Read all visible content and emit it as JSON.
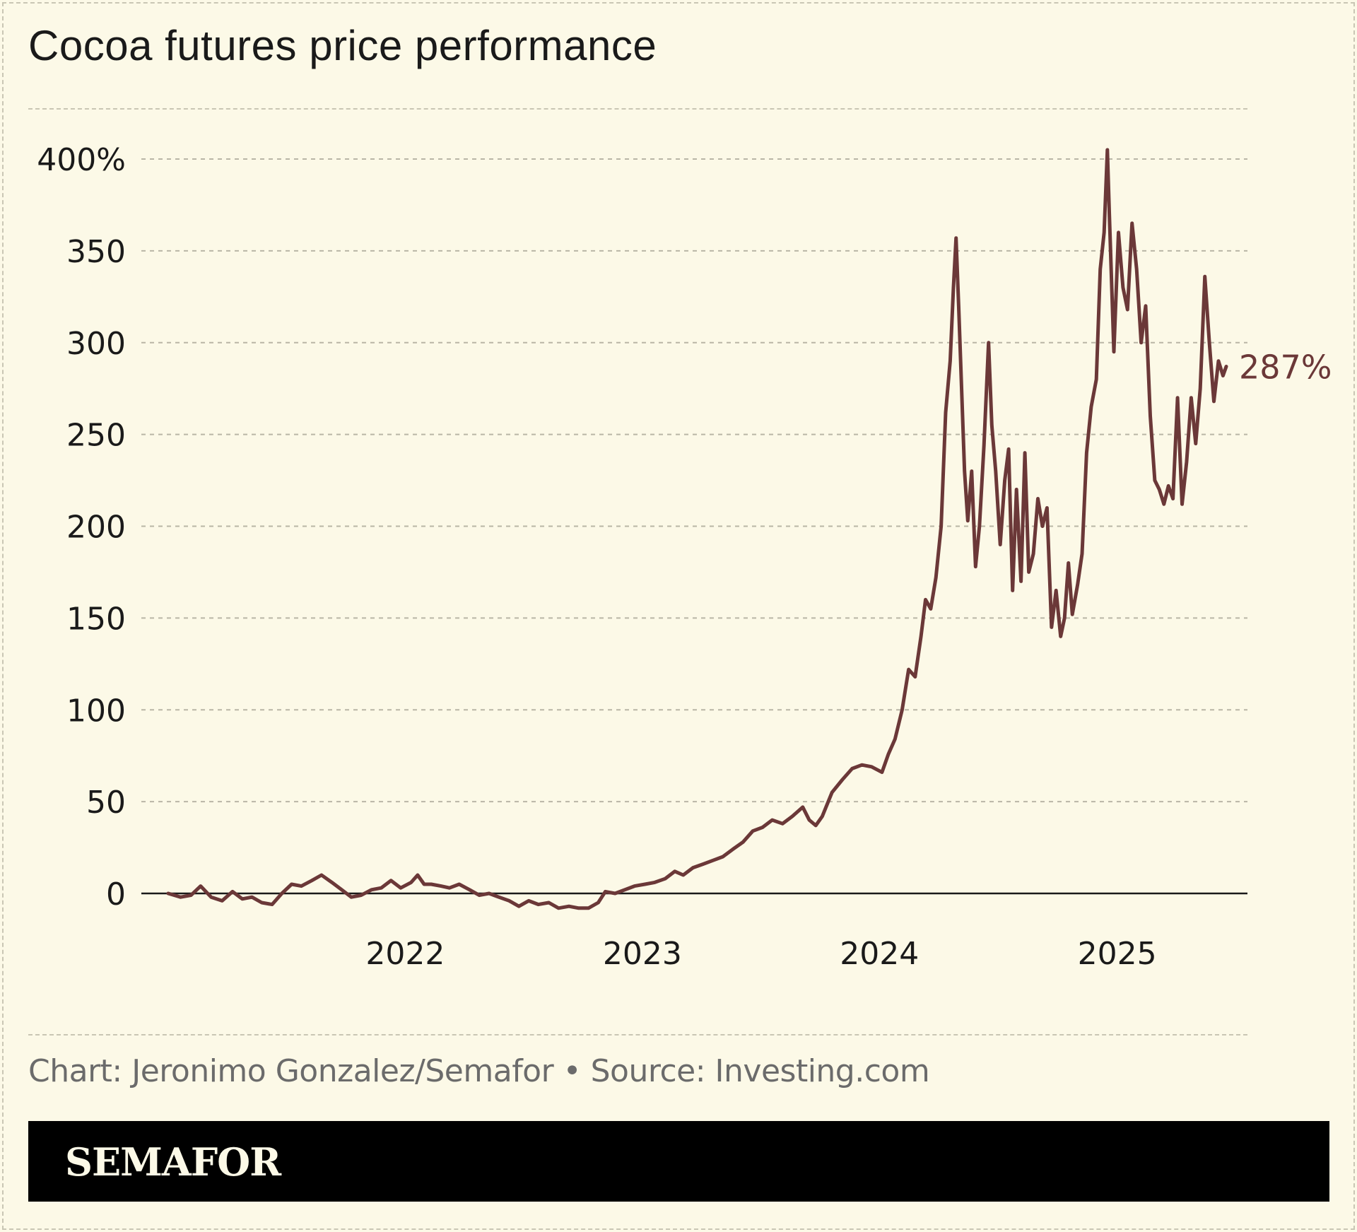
{
  "title": "Cocoa futures price performance",
  "credit": "Chart: Jeronimo Gonzalez/Semafor • Source: Investing.com",
  "brand": "SEMAFOR",
  "colors": {
    "background": "#fcf9e7",
    "line": "#6b3838",
    "grid": "#b9b6a6",
    "baseline": "#1a1a1a",
    "brandbar": "#000000"
  },
  "chart_data": {
    "type": "line",
    "title": "Cocoa futures price performance",
    "xlabel": "",
    "ylabel": "",
    "y_unit": "%",
    "ylim": [
      -10,
      410
    ],
    "y_ticks": [
      {
        "value": 400,
        "label": "400%"
      },
      {
        "value": 350,
        "label": "350"
      },
      {
        "value": 300,
        "label": "300"
      },
      {
        "value": 250,
        "label": "250"
      },
      {
        "value": 200,
        "label": "200"
      },
      {
        "value": 150,
        "label": "150"
      },
      {
        "value": 100,
        "label": "100"
      },
      {
        "value": 50,
        "label": "50"
      },
      {
        "value": 0,
        "label": "0"
      }
    ],
    "x_ticks": [
      {
        "value": "2022-01-01",
        "label": "2022"
      },
      {
        "value": "2023-01-01",
        "label": "2023"
      },
      {
        "value": "2024-01-01",
        "label": "2024"
      },
      {
        "value": "2025-01-01",
        "label": "2025"
      }
    ],
    "xlim": [
      "2021-01-01",
      "2025-07-10"
    ],
    "grid": true,
    "end_label": "287%",
    "series": [
      {
        "values": [
          [
            "2021-01-01",
            0
          ],
          [
            "2021-01-20",
            -2
          ],
          [
            "2021-02-05",
            -1
          ],
          [
            "2021-02-20",
            4
          ],
          [
            "2021-03-08",
            -2
          ],
          [
            "2021-03-25",
            -4
          ],
          [
            "2021-04-10",
            1
          ],
          [
            "2021-04-25",
            -3
          ],
          [
            "2021-05-10",
            -2
          ],
          [
            "2021-05-25",
            -5
          ],
          [
            "2021-06-10",
            -6
          ],
          [
            "2021-06-25",
            0
          ],
          [
            "2021-07-10",
            5
          ],
          [
            "2021-07-25",
            4
          ],
          [
            "2021-08-10",
            7
          ],
          [
            "2021-08-25",
            10
          ],
          [
            "2021-09-10",
            6
          ],
          [
            "2021-09-25",
            2
          ],
          [
            "2021-10-10",
            -2
          ],
          [
            "2021-10-25",
            -1
          ],
          [
            "2021-11-10",
            2
          ],
          [
            "2021-11-25",
            3
          ],
          [
            "2021-12-10",
            7
          ],
          [
            "2021-12-25",
            3
          ],
          [
            "2022-01-10",
            6
          ],
          [
            "2022-01-20",
            10
          ],
          [
            "2022-01-30",
            5
          ],
          [
            "2022-02-10",
            5
          ],
          [
            "2022-02-25",
            4
          ],
          [
            "2022-03-10",
            3
          ],
          [
            "2022-03-25",
            5
          ],
          [
            "2022-04-10",
            2
          ],
          [
            "2022-04-25",
            -1
          ],
          [
            "2022-05-10",
            0
          ],
          [
            "2022-05-25",
            -2
          ],
          [
            "2022-06-10",
            -4
          ],
          [
            "2022-06-25",
            -7
          ],
          [
            "2022-07-10",
            -4
          ],
          [
            "2022-07-25",
            -6
          ],
          [
            "2022-08-10",
            -5
          ],
          [
            "2022-08-25",
            -8
          ],
          [
            "2022-09-10",
            -7
          ],
          [
            "2022-09-25",
            -8
          ],
          [
            "2022-10-10",
            -8
          ],
          [
            "2022-10-25",
            -5
          ],
          [
            "2022-11-05",
            1
          ],
          [
            "2022-11-20",
            0
          ],
          [
            "2022-12-05",
            2
          ],
          [
            "2022-12-20",
            4
          ],
          [
            "2023-01-05",
            5
          ],
          [
            "2023-01-20",
            6
          ],
          [
            "2023-02-05",
            8
          ],
          [
            "2023-02-20",
            12
          ],
          [
            "2023-03-05",
            10
          ],
          [
            "2023-03-20",
            14
          ],
          [
            "2023-04-05",
            16
          ],
          [
            "2023-04-20",
            18
          ],
          [
            "2023-05-05",
            20
          ],
          [
            "2023-05-20",
            24
          ],
          [
            "2023-06-05",
            28
          ],
          [
            "2023-06-20",
            34
          ],
          [
            "2023-07-05",
            36
          ],
          [
            "2023-07-20",
            40
          ],
          [
            "2023-08-05",
            38
          ],
          [
            "2023-08-20",
            42
          ],
          [
            "2023-09-05",
            47
          ],
          [
            "2023-09-15",
            40
          ],
          [
            "2023-09-25",
            37
          ],
          [
            "2023-10-05",
            42
          ],
          [
            "2023-10-20",
            55
          ],
          [
            "2023-11-05",
            62
          ],
          [
            "2023-11-20",
            68
          ],
          [
            "2023-12-05",
            70
          ],
          [
            "2023-12-20",
            69
          ],
          [
            "2024-01-05",
            66
          ],
          [
            "2024-01-15",
            76
          ],
          [
            "2024-01-25",
            84
          ],
          [
            "2024-02-05",
            100
          ],
          [
            "2024-02-15",
            122
          ],
          [
            "2024-02-25",
            118
          ],
          [
            "2024-03-05",
            140
          ],
          [
            "2024-03-12",
            160
          ],
          [
            "2024-03-20",
            155
          ],
          [
            "2024-03-28",
            172
          ],
          [
            "2024-04-05",
            200
          ],
          [
            "2024-04-12",
            262
          ],
          [
            "2024-04-19",
            290
          ],
          [
            "2024-04-24",
            330
          ],
          [
            "2024-04-28",
            357
          ],
          [
            "2024-05-02",
            320
          ],
          [
            "2024-05-07",
            270
          ],
          [
            "2024-05-11",
            230
          ],
          [
            "2024-05-16",
            203
          ],
          [
            "2024-05-22",
            230
          ],
          [
            "2024-05-28",
            178
          ],
          [
            "2024-06-03",
            200
          ],
          [
            "2024-06-10",
            244
          ],
          [
            "2024-06-17",
            300
          ],
          [
            "2024-06-22",
            255
          ],
          [
            "2024-06-28",
            230
          ],
          [
            "2024-07-05",
            190
          ],
          [
            "2024-07-12",
            225
          ],
          [
            "2024-07-18",
            242
          ],
          [
            "2024-07-24",
            165
          ],
          [
            "2024-07-30",
            220
          ],
          [
            "2024-08-06",
            170
          ],
          [
            "2024-08-12",
            240
          ],
          [
            "2024-08-18",
            175
          ],
          [
            "2024-08-25",
            185
          ],
          [
            "2024-09-01",
            215
          ],
          [
            "2024-09-08",
            200
          ],
          [
            "2024-09-15",
            210
          ],
          [
            "2024-09-22",
            145
          ],
          [
            "2024-09-29",
            165
          ],
          [
            "2024-10-06",
            140
          ],
          [
            "2024-10-12",
            150
          ],
          [
            "2024-10-18",
            180
          ],
          [
            "2024-10-24",
            152
          ],
          [
            "2024-11-01",
            168
          ],
          [
            "2024-11-08",
            185
          ],
          [
            "2024-11-15",
            240
          ],
          [
            "2024-11-22",
            265
          ],
          [
            "2024-11-30",
            280
          ],
          [
            "2024-12-06",
            340
          ],
          [
            "2024-12-12",
            360
          ],
          [
            "2024-12-17",
            405
          ],
          [
            "2024-12-20",
            370
          ],
          [
            "2024-12-27",
            295
          ],
          [
            "2025-01-03",
            360
          ],
          [
            "2025-01-10",
            330
          ],
          [
            "2025-01-17",
            318
          ],
          [
            "2025-01-24",
            365
          ],
          [
            "2025-01-31",
            340
          ],
          [
            "2025-02-07",
            300
          ],
          [
            "2025-02-14",
            320
          ],
          [
            "2025-02-21",
            260
          ],
          [
            "2025-02-28",
            225
          ],
          [
            "2025-03-07",
            220
          ],
          [
            "2025-03-14",
            212
          ],
          [
            "2025-03-21",
            222
          ],
          [
            "2025-03-28",
            215
          ],
          [
            "2025-04-04",
            270
          ],
          [
            "2025-04-11",
            212
          ],
          [
            "2025-04-18",
            235
          ],
          [
            "2025-04-25",
            270
          ],
          [
            "2025-05-02",
            245
          ],
          [
            "2025-05-09",
            275
          ],
          [
            "2025-05-16",
            336
          ],
          [
            "2025-05-23",
            300
          ],
          [
            "2025-05-30",
            268
          ],
          [
            "2025-06-06",
            290
          ],
          [
            "2025-06-13",
            282
          ],
          [
            "2025-06-18",
            287
          ]
        ]
      }
    ]
  }
}
